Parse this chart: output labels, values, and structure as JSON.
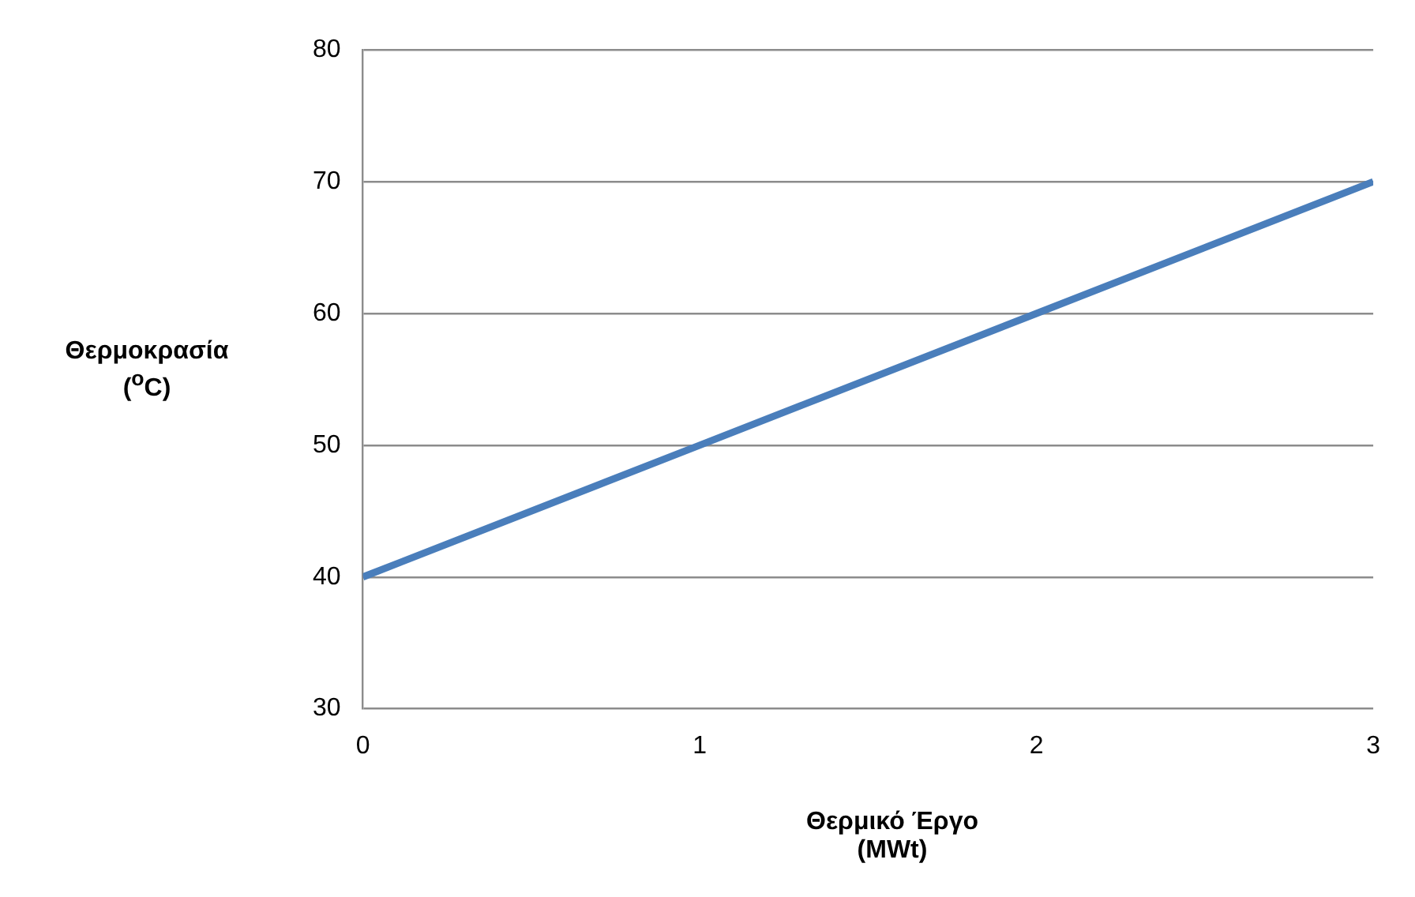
{
  "chart_data": {
    "type": "line",
    "xlabel": "Θερμικό Έργο (MWt)",
    "ylabel": "Θερμοκρασία ($^{o}$C)",
    "x": [
      0,
      1,
      2,
      3
    ],
    "series": [
      {
        "color": "#4a7ebb",
        "values": [
          40,
          50,
          60,
          70
        ]
      }
    ],
    "xlim": [
      0,
      3
    ],
    "xticks": [
      0,
      1,
      2,
      3
    ],
    "ylim": [
      30,
      80
    ],
    "yticks": [
      30,
      40,
      50,
      60,
      70,
      80
    ],
    "grid": "y",
    "legend": false,
    "marker": "none",
    "line_style": "solid"
  }
}
